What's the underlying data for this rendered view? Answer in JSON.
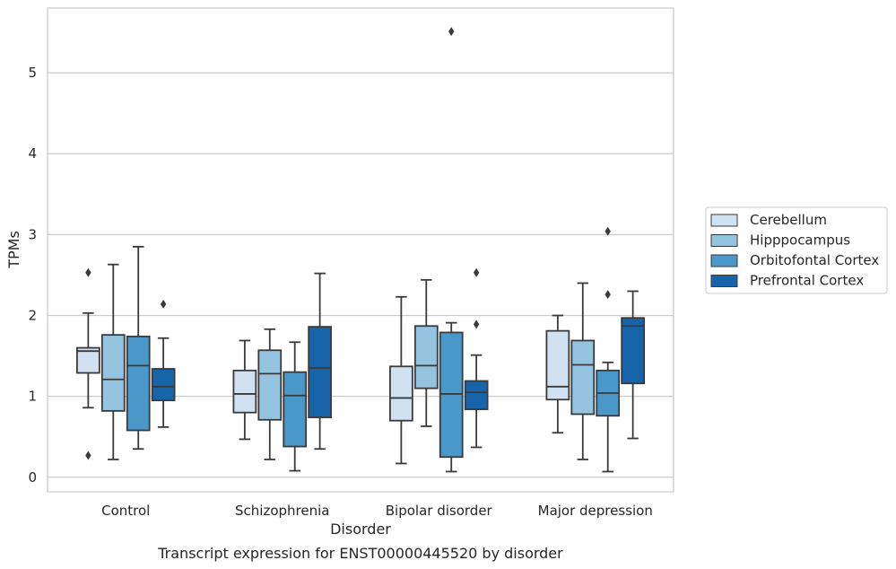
{
  "chart_data": {
    "type": "box",
    "title": "",
    "caption": "Transcript expression for ENST00000445520 by disorder",
    "xlabel": "Disorder",
    "ylabel": "TPMs",
    "ylim": [
      -0.18,
      5.8
    ],
    "yticks": [
      "0",
      "1",
      "2",
      "3",
      "4",
      "5"
    ],
    "grid": true,
    "legend_position": "right",
    "categories": [
      "Control",
      "Schizophrenia",
      "Bipolar disorder",
      "Major depression"
    ],
    "series": [
      {
        "name": "Cerebellum",
        "color": "#d0e1f2",
        "boxes": [
          {
            "q1": 1.29,
            "median": 1.56,
            "q3": 1.6,
            "whisker_low": 0.86,
            "whisker_high": 2.03,
            "outliers": [
              2.53,
              0.27
            ]
          },
          {
            "q1": 0.8,
            "median": 1.03,
            "q3": 1.32,
            "whisker_low": 0.47,
            "whisker_high": 1.69,
            "outliers": []
          },
          {
            "q1": 0.7,
            "median": 0.98,
            "q3": 1.37,
            "whisker_low": 0.17,
            "whisker_high": 2.23,
            "outliers": []
          },
          {
            "q1": 0.96,
            "median": 1.12,
            "q3": 1.81,
            "whisker_low": 0.55,
            "whisker_high": 2.0,
            "outliers": []
          }
        ]
      },
      {
        "name": "Hipppocampus",
        "color": "#94c4df",
        "boxes": [
          {
            "q1": 0.82,
            "median": 1.21,
            "q3": 1.76,
            "whisker_low": 0.22,
            "whisker_high": 2.63,
            "outliers": []
          },
          {
            "q1": 0.71,
            "median": 1.28,
            "q3": 1.57,
            "whisker_low": 0.22,
            "whisker_high": 1.83,
            "outliers": []
          },
          {
            "q1": 1.1,
            "median": 1.38,
            "q3": 1.87,
            "whisker_low": 0.63,
            "whisker_high": 2.44,
            "outliers": []
          },
          {
            "q1": 0.78,
            "median": 1.39,
            "q3": 1.69,
            "whisker_low": 0.22,
            "whisker_high": 2.4,
            "outliers": []
          }
        ]
      },
      {
        "name": "Orbitofontal Cortex",
        "color": "#4a98c9",
        "boxes": [
          {
            "q1": 0.58,
            "median": 1.38,
            "q3": 1.74,
            "whisker_low": 0.35,
            "whisker_high": 2.85,
            "outliers": []
          },
          {
            "q1": 0.38,
            "median": 1.01,
            "q3": 1.3,
            "whisker_low": 0.08,
            "whisker_high": 1.67,
            "outliers": []
          },
          {
            "q1": 0.25,
            "median": 1.03,
            "q3": 1.79,
            "whisker_low": 0.07,
            "whisker_high": 1.91,
            "outliers": [
              5.51
            ]
          },
          {
            "q1": 0.76,
            "median": 1.04,
            "q3": 1.32,
            "whisker_low": 0.07,
            "whisker_high": 1.42,
            "outliers": [
              3.04,
              2.26
            ]
          }
        ]
      },
      {
        "name": "Prefrontal Cortex",
        "color": "#1764ab",
        "boxes": [
          {
            "q1": 0.95,
            "median": 1.12,
            "q3": 1.34,
            "whisker_low": 0.62,
            "whisker_high": 1.72,
            "outliers": [
              2.14
            ]
          },
          {
            "q1": 0.74,
            "median": 1.35,
            "q3": 1.86,
            "whisker_low": 0.35,
            "whisker_high": 2.52,
            "outliers": []
          },
          {
            "q1": 0.84,
            "median": 1.05,
            "q3": 1.19,
            "whisker_low": 0.37,
            "whisker_high": 1.51,
            "outliers": [
              2.53,
              1.89
            ]
          },
          {
            "q1": 1.16,
            "median": 1.87,
            "q3": 1.97,
            "whisker_low": 0.48,
            "whisker_high": 2.3,
            "outliers": []
          }
        ]
      }
    ]
  }
}
